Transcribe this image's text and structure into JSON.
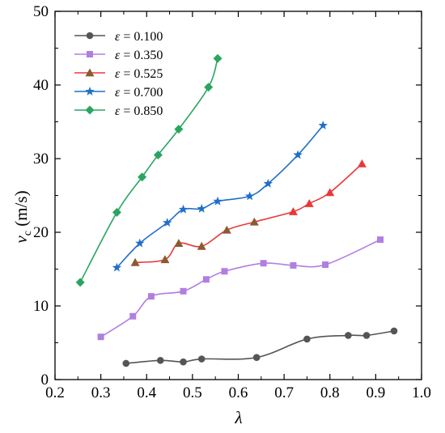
{
  "chart_data": {
    "type": "line",
    "title": "",
    "xlabel": "λ",
    "ylabel_main": "v",
    "ylabel_sub": "c",
    "ylabel_unit": " (m/s)",
    "xlim": [
      0.2,
      1.0
    ],
    "ylim": [
      0,
      50
    ],
    "xticks": [
      0.2,
      0.3,
      0.4,
      0.5,
      0.6,
      0.7,
      0.8,
      0.9,
      1.0
    ],
    "xtick_labels": [
      "0.2",
      "0.3",
      "0.4",
      "0.5",
      "0.6",
      "0.7",
      "0.8",
      "0.9",
      "1.0"
    ],
    "yticks": [
      0,
      10,
      20,
      30,
      40,
      50
    ],
    "ytick_labels": [
      "0",
      "10",
      "20",
      "30",
      "40",
      "50"
    ],
    "grid": false,
    "legend_position": "top-left",
    "legend_symbol": "ε",
    "series": [
      {
        "name": "0.100",
        "line_color": "#555555",
        "marker_color": "#555555",
        "marker": "circle",
        "x": [
          0.355,
          0.43,
          0.48,
          0.52,
          0.64,
          0.75,
          0.84,
          0.88,
          0.94
        ],
        "y": [
          2.2,
          2.6,
          2.4,
          2.8,
          3.0,
          5.5,
          6.0,
          6.0,
          6.6
        ]
      },
      {
        "name": "0.350",
        "line_color": "#b07fe0",
        "marker_color": "#b07fe0",
        "marker": "square",
        "x": [
          0.3,
          0.37,
          0.41,
          0.48,
          0.53,
          0.57,
          0.655,
          0.72,
          0.79,
          0.91
        ],
        "y": [
          5.8,
          8.6,
          11.3,
          12.0,
          13.6,
          14.7,
          15.8,
          15.5,
          15.6,
          19.0
        ]
      },
      {
        "name": "0.525",
        "line_color": "#e8393a",
        "marker_color": "#8b5a30",
        "marker": "triangle",
        "marker_colors": [
          "#8b5a30",
          "#8b5a30",
          "#8b5a30",
          "#8b5a30",
          "#8b5a30",
          "#8b5a30",
          "#e8393a",
          "#e8393a",
          "#e8393a",
          "#e8393a"
        ],
        "x": [
          0.375,
          0.44,
          0.47,
          0.52,
          0.575,
          0.635,
          0.72,
          0.755,
          0.8,
          0.87
        ],
        "y": [
          15.9,
          16.3,
          18.5,
          18.1,
          20.3,
          21.4,
          22.8,
          23.9,
          25.4,
          29.3
        ]
      },
      {
        "name": "0.700",
        "line_color": "#1f6fc9",
        "marker_color": "#1f6fc9",
        "marker": "star",
        "x": [
          0.335,
          0.385,
          0.445,
          0.48,
          0.52,
          0.555,
          0.625,
          0.665,
          0.73,
          0.785
        ],
        "y": [
          15.2,
          18.5,
          21.3,
          23.1,
          23.2,
          24.2,
          24.9,
          26.6,
          30.5,
          34.5
        ]
      },
      {
        "name": "0.850",
        "line_color": "#2aa561",
        "marker_color": "#2aa561",
        "marker": "diamond",
        "x": [
          0.255,
          0.335,
          0.39,
          0.425,
          0.47,
          0.535,
          0.555
        ],
        "y": [
          13.2,
          22.7,
          27.5,
          30.5,
          34.0,
          39.7,
          43.6
        ]
      }
    ]
  }
}
